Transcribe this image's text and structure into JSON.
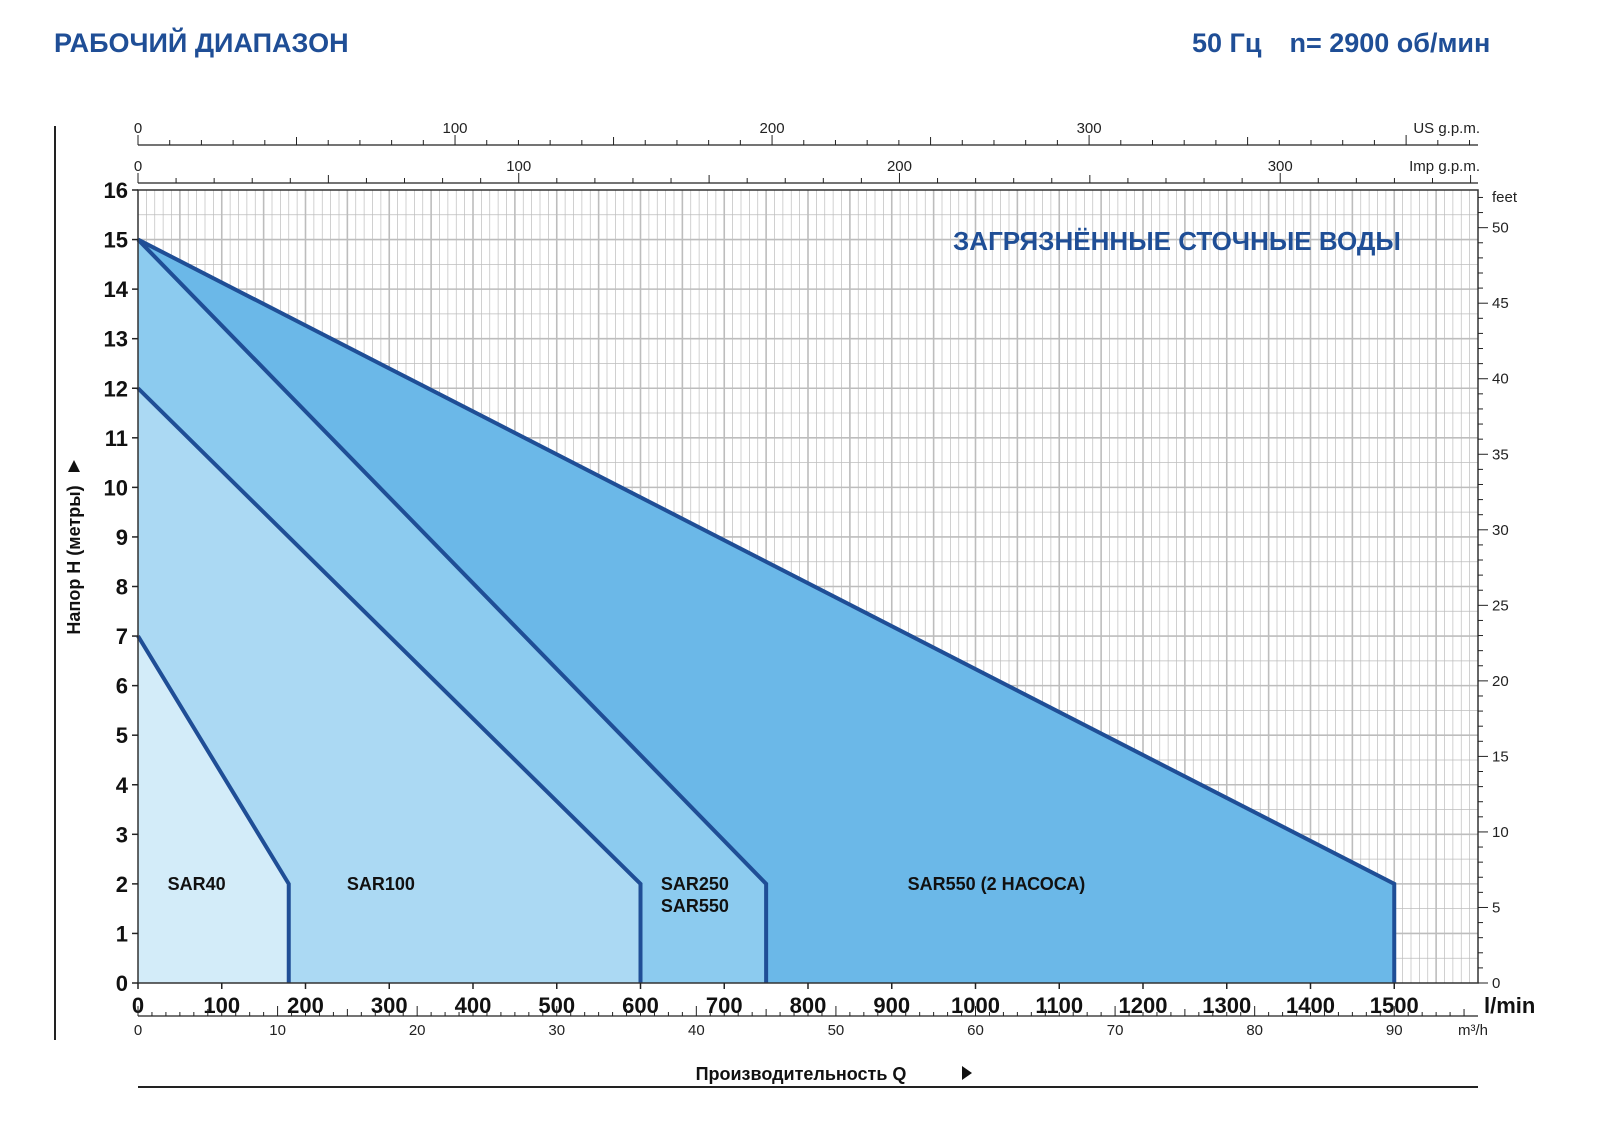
{
  "header": {
    "title": "РАБОЧИЙ ДИАПАЗОН",
    "frequency": "50 Гц",
    "speed": "n= 2900 об/мин"
  },
  "chart_data": {
    "type": "area",
    "title": "РАБОЧИЙ ДИАПАЗОН",
    "annotation": "ЗАГРЯЗНЁННЫЕ СТОЧНЫЕ ВОДЫ",
    "xlabel": "Производительность Q",
    "ylabel": "Напор H (метры)",
    "x_unit": "l/min",
    "xlim": [
      0,
      1600
    ],
    "ylim": [
      0,
      16
    ],
    "x_ticks": [
      0,
      100,
      200,
      300,
      400,
      500,
      600,
      700,
      800,
      900,
      1000,
      1100,
      1200,
      1300,
      1400,
      1500
    ],
    "y_ticks": [
      0,
      1,
      2,
      3,
      4,
      5,
      6,
      7,
      8,
      9,
      10,
      11,
      12,
      13,
      14,
      15,
      16
    ],
    "grid": true,
    "secondary_axes": {
      "us_gpm": {
        "label": "US g.p.m.",
        "ticks": [
          0,
          100,
          200,
          300
        ]
      },
      "imp_gpm": {
        "label": "Imp g.p.m.",
        "ticks": [
          0,
          100,
          200,
          300
        ]
      },
      "m3h": {
        "label": "m³/h",
        "ticks": [
          0,
          10,
          20,
          30,
          40,
          50,
          60,
          70,
          80,
          90
        ]
      },
      "feet": {
        "label": "feet",
        "ticks": [
          0,
          5,
          10,
          15,
          20,
          25,
          30,
          35,
          40,
          45,
          50
        ]
      }
    },
    "series": [
      {
        "name": "SAR40",
        "labels": [
          "SAR40"
        ],
        "points": [
          [
            0,
            7
          ],
          [
            180,
            2
          ],
          [
            180,
            0
          ]
        ],
        "fill": "#d3ecf9"
      },
      {
        "name": "SAR100",
        "labels": [
          "SAR100"
        ],
        "points": [
          [
            0,
            12
          ],
          [
            600,
            2
          ],
          [
            600,
            0
          ]
        ],
        "fill": "#abd9f3"
      },
      {
        "name": "SAR250 / SAR550",
        "labels": [
          "SAR250",
          "SAR550"
        ],
        "points": [
          [
            0,
            15
          ],
          [
            750,
            2
          ],
          [
            750,
            0
          ]
        ],
        "fill": "#8ccbef"
      },
      {
        "name": "SAR550 (2 НАСОСА)",
        "labels": [
          "SAR550 (2 НАСОСА)"
        ],
        "points": [
          [
            0,
            15
          ],
          [
            1500,
            2
          ],
          [
            1500,
            0
          ]
        ],
        "fill": "#6bb8e8"
      }
    ],
    "series_label_anchor": [
      [
        70,
        2
      ],
      [
        290,
        2
      ],
      [
        665,
        2
      ],
      [
        1025,
        2
      ]
    ],
    "colors": {
      "curve": "#1f4e96",
      "grid": "#bdbdbd",
      "accent": "#1f4e96"
    }
  }
}
